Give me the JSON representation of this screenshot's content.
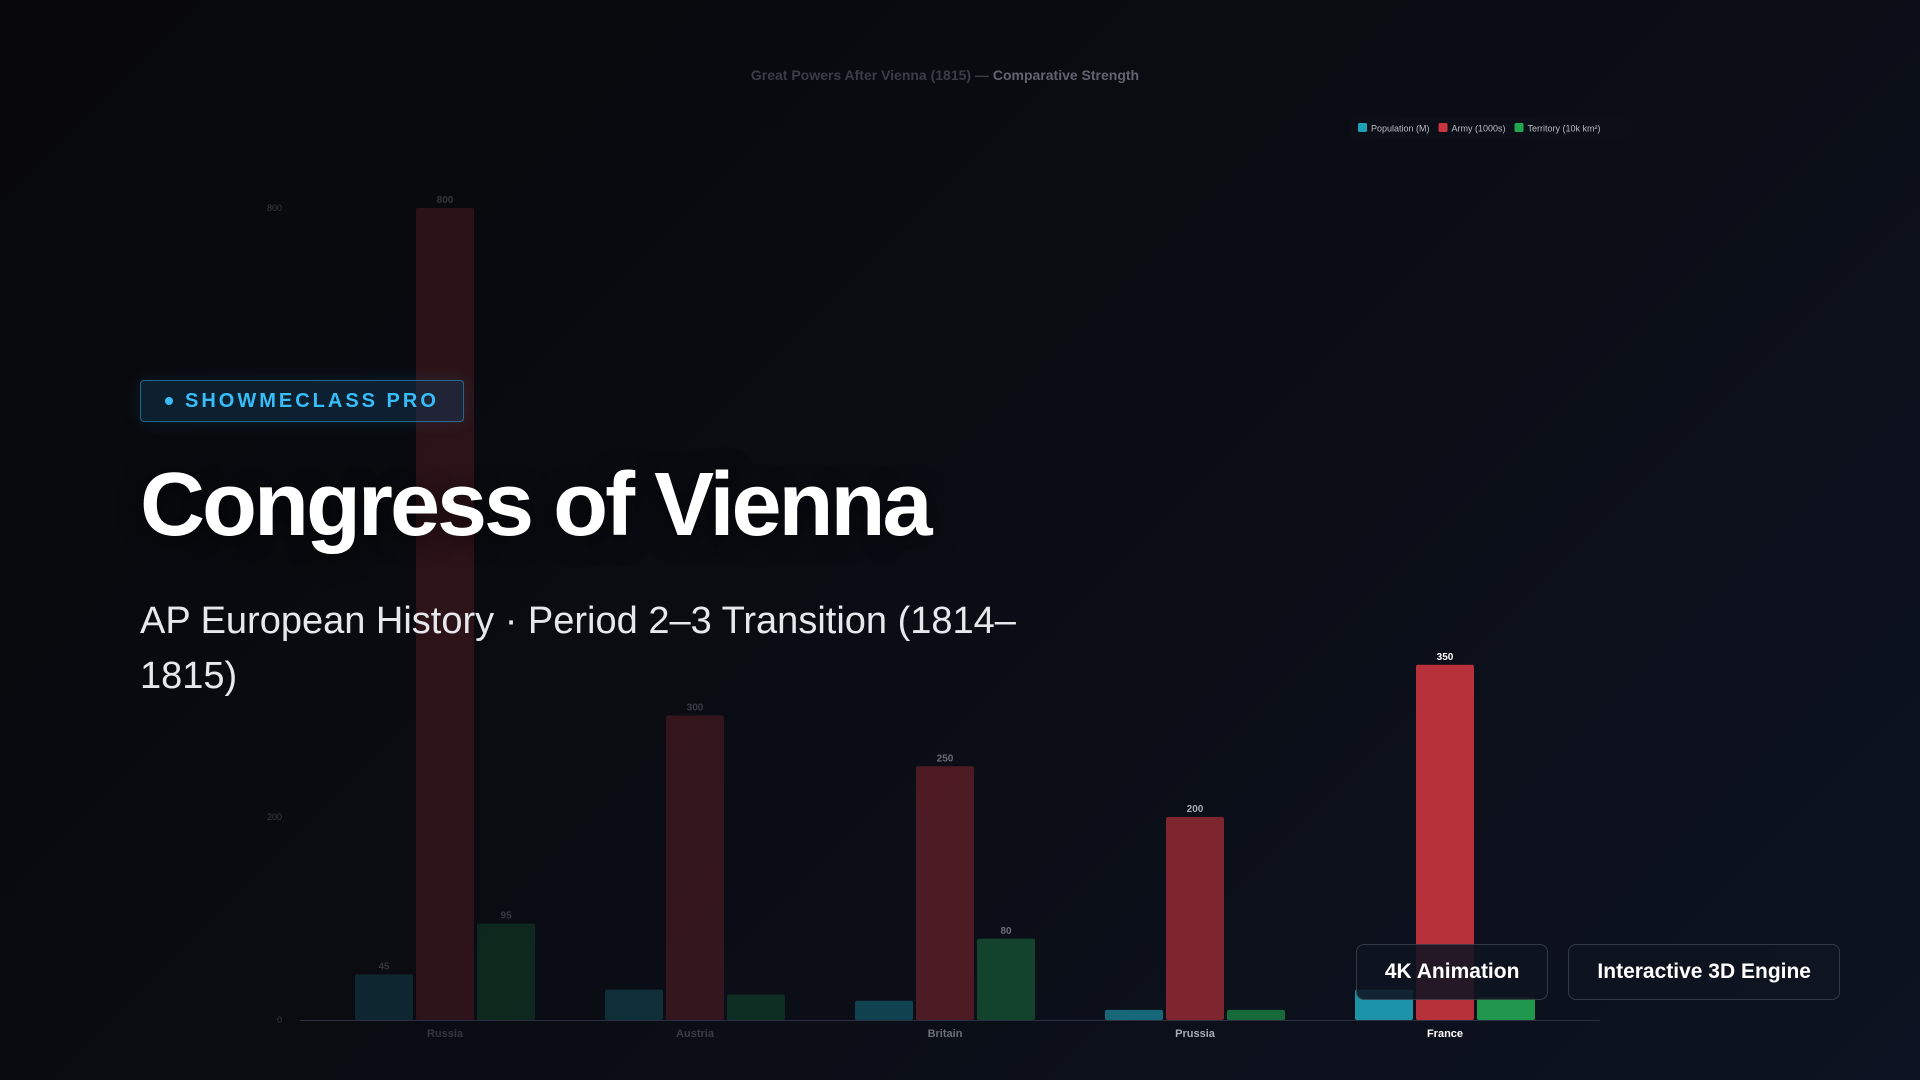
{
  "chart_data": {
    "type": "bar",
    "title_dim": "Great Powers After Vienna (1815) — ",
    "title_bright": "Comparative Strength",
    "categories": [
      "Russia",
      "Austria",
      "Britain",
      "Prussia",
      "France"
    ],
    "series": [
      {
        "name": "Population (M)",
        "color": "#1ea2b8",
        "values": [
          45,
          30,
          19,
          10,
          30
        ]
      },
      {
        "name": "Army (1000s)",
        "color": "#c9353d",
        "values": [
          800,
          300,
          250,
          200,
          350
        ]
      },
      {
        "name": "Territory (10k km²)",
        "color": "#22a652",
        "values": [
          95,
          25,
          80,
          10,
          22
        ]
      }
    ],
    "ylim": [
      0,
      800
    ],
    "yticks": [
      "0",
      "200",
      "800"
    ],
    "value_labels_shown": [
      {
        "category": 0,
        "series": 0,
        "text": "45"
      },
      {
        "category": 0,
        "series": 1,
        "text": "800"
      },
      {
        "category": 0,
        "series": 2,
        "text": "95"
      },
      {
        "category": 1,
        "series": 1,
        "text": "300"
      },
      {
        "category": 2,
        "series": 1,
        "text": "250"
      },
      {
        "category": 2,
        "series": 2,
        "text": "80"
      },
      {
        "category": 3,
        "series": 1,
        "text": "200"
      },
      {
        "category": 4,
        "series": 1,
        "text": "350"
      }
    ],
    "legend_position": "top-right",
    "grid": false
  },
  "overlay": {
    "badge": "SHOWMECLASS PRO",
    "title": "Congress of Vienna",
    "subtitle": "AP European History · Period 2–3 Transition (1814–1815)"
  },
  "buttons": {
    "animation": "4K Animation",
    "engine": "Interactive 3D Engine"
  },
  "colors": {
    "accent": "#38bdf8"
  }
}
